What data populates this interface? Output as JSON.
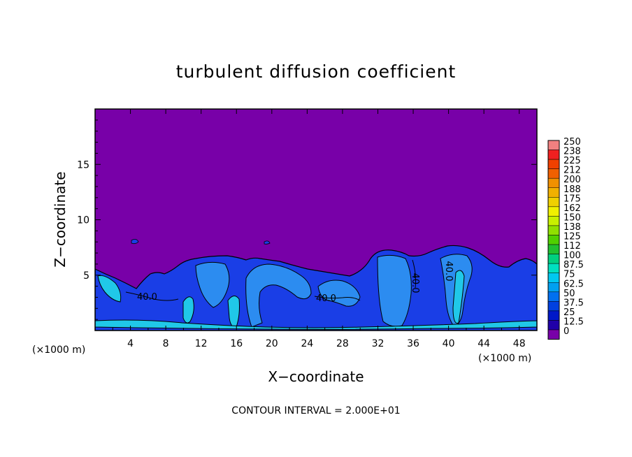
{
  "chart_data": {
    "type": "heatmap",
    "title": "turbulent diffusion coefficient",
    "xlabel": "X−coordinate",
    "ylabel": "Z−coordinate",
    "x_unit_left": "(×1000 m)",
    "x_unit_right": "(×1000 m)",
    "footer": "CONTOUR INTERVAL = 2.000E+01",
    "xlim": [
      0,
      50
    ],
    "ylim": [
      0,
      20
    ],
    "x_ticks": [
      "4",
      "8",
      "12",
      "16",
      "20",
      "24",
      "28",
      "32",
      "36",
      "40",
      "44",
      "48"
    ],
    "y_ticks": [
      "5",
      "10",
      "15"
    ],
    "colorbar_labels": [
      "250",
      "238",
      "225",
      "212",
      "200",
      "188",
      "175",
      "162",
      "150",
      "138",
      "125",
      "112",
      "100",
      "87.5",
      "75",
      "62.5",
      "50",
      "37.5",
      "25",
      "12.5",
      "0"
    ],
    "colorbar_colors": [
      "#f08080",
      "#f02020",
      "#f04000",
      "#f06000",
      "#f09000",
      "#f0b000",
      "#f0d000",
      "#f0f000",
      "#c8f000",
      "#90e000",
      "#50d000",
      "#20c030",
      "#00d080",
      "#00e0c0",
      "#00c8f0",
      "#00a0f0",
      "#0070f0",
      "#0040e0",
      "#0018c8",
      "#2000a8",
      "#7800a8"
    ],
    "contour_labels": [
      "40.0",
      "40.0",
      "40.0",
      "40.0"
    ],
    "region_colors": {
      "background": "#7800a8",
      "turbulent_layer": "#1a3ee6",
      "strong": "#2c8cf0",
      "peak": "#20c8e8"
    }
  }
}
